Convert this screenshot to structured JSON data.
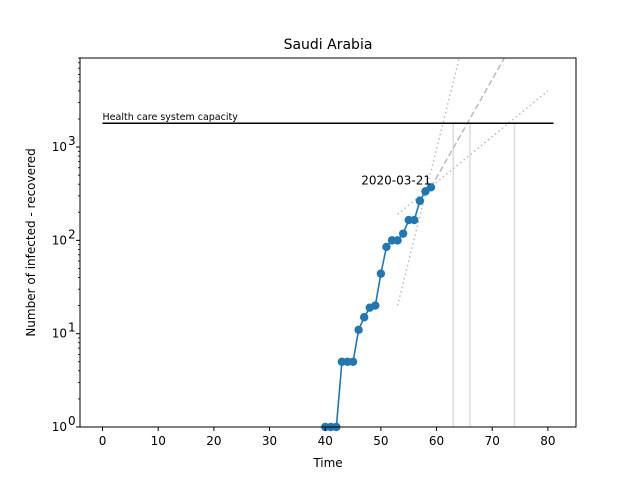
{
  "chart_data": {
    "type": "line",
    "title": "Saudi Arabia",
    "xlabel": "Time",
    "ylabel": "Number of infected - recovered",
    "xlim": [
      -4.05,
      85.05
    ],
    "ylim": [
      1,
      9000
    ],
    "yscale": "log",
    "xticks": [
      0,
      10,
      20,
      30,
      40,
      50,
      60,
      70,
      80
    ],
    "yticks": [
      {
        "value": 1,
        "label": "10",
        "exp": "0"
      },
      {
        "value": 10,
        "label": "10",
        "exp": "1"
      },
      {
        "value": 100,
        "label": "10",
        "exp": "2"
      },
      {
        "value": 1000,
        "label": "10",
        "exp": "3"
      }
    ],
    "series": [
      {
        "color": "#1f77b4",
        "points": [
          [
            40,
            1
          ],
          [
            41,
            1
          ],
          [
            42,
            1
          ],
          [
            43,
            5
          ],
          [
            44,
            5
          ],
          [
            45,
            5
          ],
          [
            46,
            11
          ],
          [
            47,
            15
          ],
          [
            48,
            19
          ],
          [
            49,
            20
          ],
          [
            50,
            44
          ],
          [
            51,
            85
          ],
          [
            52,
            100
          ],
          [
            53,
            100
          ],
          [
            54,
            118
          ],
          [
            55,
            165
          ],
          [
            56,
            165
          ],
          [
            57,
            265
          ],
          [
            58,
            335
          ],
          [
            59,
            370
          ]
        ]
      }
    ],
    "capacity": {
      "label": "Health care system capacity",
      "value": 1800,
      "x_start": 0,
      "x_end": 81
    },
    "annotation": {
      "text": "2020-03-21",
      "x": 59,
      "y": 370
    },
    "projections": [
      {
        "style": "dotted",
        "x0": 53,
        "y0": 20,
        "x1": 65,
        "y1": 15000
      },
      {
        "style": "dashed",
        "x0": 59,
        "y0": 370,
        "x1": 74,
        "y1": 14000
      },
      {
        "style": "dotted",
        "x0": 53,
        "y0": 190,
        "x1": 80,
        "y1": 4000
      }
    ],
    "projection_color": "#bbbbbb",
    "crossing_lines": [
      63,
      66,
      74
    ],
    "crossing_color": "#dddddd",
    "grid": false
  }
}
